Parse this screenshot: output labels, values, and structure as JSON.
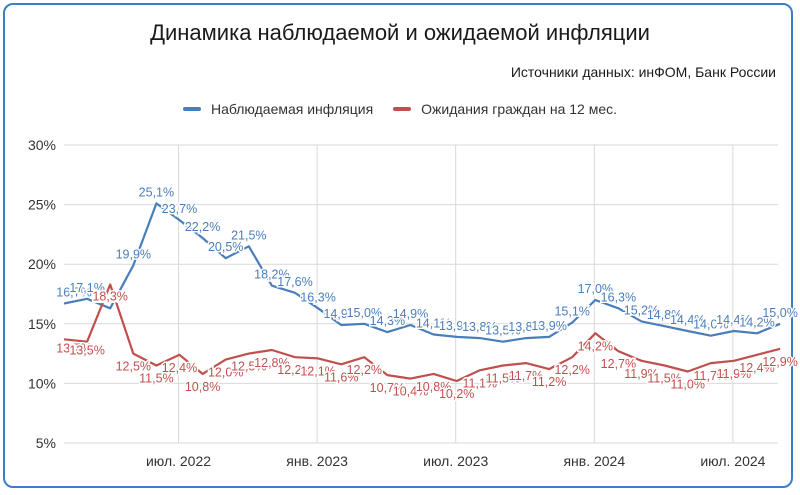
{
  "chart_data": {
    "type": "line",
    "title": "Динамика наблюдаемой и ожидаемой инфляции",
    "subtitle": "Источники данных: инФОМ, Банк России",
    "ylim": [
      5,
      30
    ],
    "y_ticks": [
      "5%",
      "10%",
      "15%",
      "20%",
      "25%",
      "30%"
    ],
    "y_tick_values": [
      5,
      10,
      15,
      20,
      25,
      30
    ],
    "x_tick_labels": [
      "июл. 2022",
      "янв. 2023",
      "июл. 2023",
      "янв. 2024",
      "июл. 2024"
    ],
    "x_tick_index": [
      5,
      11,
      17,
      23,
      29
    ],
    "grid": true,
    "legend_position": "top",
    "series": [
      {
        "name": "Наблюдаемая инфляция",
        "color": "#4a7ebb",
        "values": [
          16.7,
          17.1,
          16.3,
          19.9,
          25.1,
          23.7,
          22.2,
          20.5,
          21.5,
          18.2,
          17.6,
          16.3,
          14.9,
          15.0,
          14.3,
          14.9,
          14.1,
          13.9,
          13.8,
          13.5,
          13.8,
          13.9,
          15.1,
          17.0,
          16.3,
          15.2,
          14.8,
          14.4,
          14.0,
          14.4,
          14.2,
          15.0
        ],
        "labels": [
          "16,7%",
          "17,1%",
          "16,3%",
          "19,9%",
          "25,1%",
          "23,7%",
          "22,2%",
          "20,5%",
          "21,5%",
          "18,2%",
          "17,6%",
          "16,3%",
          "14,9%",
          "15,0%",
          "14,3%",
          "14,9%",
          "14,1%",
          "13,9%",
          "13,8%",
          "13,5%",
          "13,8%",
          "13,9%",
          "15,1%",
          "17,0%",
          "16,3%",
          "15,2%",
          "14,8%",
          "14,4%",
          "14,0%",
          "14,4%",
          "14,2%",
          "15,0%"
        ]
      },
      {
        "name": "Ожидания граждан на 12 мес.",
        "color": "#c0504d",
        "values": [
          13.7,
          13.5,
          18.3,
          12.5,
          11.5,
          12.4,
          10.8,
          12.0,
          12.5,
          12.8,
          12.2,
          12.1,
          11.6,
          12.2,
          10.7,
          10.4,
          10.8,
          10.2,
          11.1,
          11.5,
          11.7,
          11.2,
          12.2,
          14.2,
          12.7,
          11.9,
          11.5,
          11.0,
          11.7,
          11.9,
          12.4,
          12.9
        ],
        "labels": [
          "13,7%",
          "13,5%",
          "18,3%",
          "12,5%",
          "11,5%",
          "12,4%",
          "10,8%",
          "12,0%",
          "12,5%",
          "12,8%",
          "12,2%",
          "12,1%",
          "11,6%",
          "12,2%",
          "10,7%",
          "10,4%",
          "10,8%",
          "10,2%",
          "11,1%",
          "11,5%",
          "11,7%",
          "11,2%",
          "12,2%",
          "14,2%",
          "12,7%",
          "11,9%",
          "11,5%",
          "11,0%",
          "11,7%",
          "11,9%",
          "12,4%",
          "12,9%"
        ]
      }
    ]
  }
}
